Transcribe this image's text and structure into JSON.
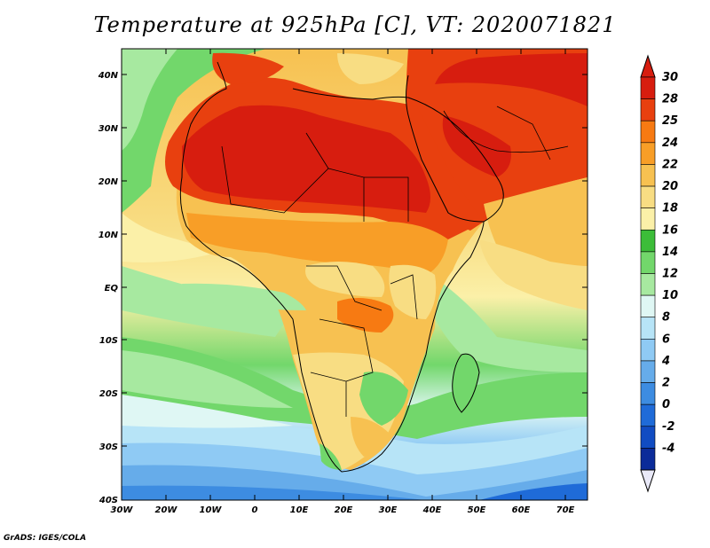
{
  "title": "Temperature at 925hPa [C], VT: 2020071821",
  "credit": "GrADS: IGES/COLA",
  "map": {
    "lat_ticks": [
      "40N",
      "30N",
      "20N",
      "10N",
      "EQ",
      "10S",
      "20S",
      "30S",
      "40S"
    ],
    "lon_ticks": [
      "30W",
      "20W",
      "10W",
      "0",
      "10E",
      "20E",
      "30E",
      "40E",
      "50E",
      "60E",
      "70E"
    ]
  },
  "colorbar": {
    "labels": [
      "30",
      "28",
      "25",
      "24",
      "22",
      "20",
      "18",
      "16",
      "14",
      "12",
      "10",
      "8",
      "6",
      "4",
      "2",
      "0",
      "-2",
      "-4"
    ],
    "colors": [
      "#d71d0f",
      "#e8400f",
      "#f77a12",
      "#f89e27",
      "#f7c151",
      "#f8dd83",
      "#fbf0a8",
      "#3cbd39",
      "#72d76b",
      "#a7e9a0",
      "#dff7f4",
      "#b7e4f7",
      "#8fcaf4",
      "#66acea",
      "#3d8ce1",
      "#1f6bd8",
      "#114cc2",
      "#0b2b99"
    ],
    "top_arrow_color": "#d71d0f",
    "bottom_arrow_color": "#e9e9f8"
  }
}
